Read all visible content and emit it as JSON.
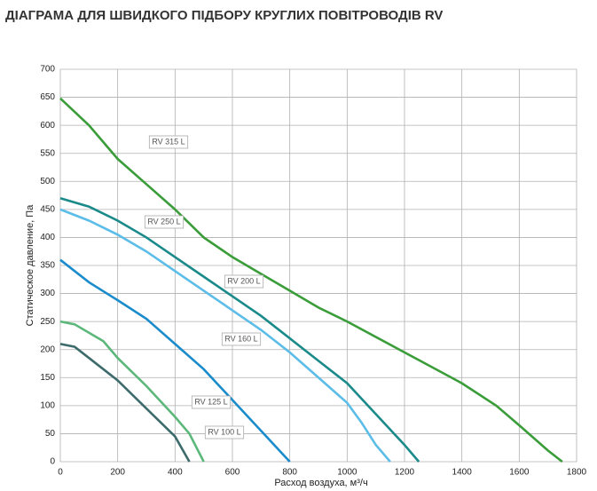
{
  "chart_data": {
    "type": "line",
    "title": "ДІАГРАМА ДЛЯ ШВИДКОГО ПІДБОРУ КРУГЛИХ ПОВІТРОВОДІВ RV",
    "xlabel": "Расход воздуха, м³/ч",
    "ylabel": "Статическое давление, Па",
    "xlim": [
      0,
      1800
    ],
    "xticks": [
      0,
      200,
      400,
      600,
      800,
      1000,
      1200,
      1400,
      1600,
      1800
    ],
    "ylim": [
      0,
      700
    ],
    "yticks": [
      0,
      50,
      100,
      150,
      200,
      250,
      300,
      350,
      400,
      450,
      500,
      550,
      600,
      650,
      700
    ],
    "grid": true,
    "series": [
      {
        "name": "RV 315 L",
        "color": "#3a9d3a",
        "x": [
          0,
          100,
          200,
          300,
          400,
          500,
          600,
          700,
          800,
          900,
          1000,
          1200,
          1400,
          1520,
          1600,
          1700,
          1750
        ],
        "values": [
          648,
          600,
          540,
          495,
          450,
          400,
          365,
          335,
          305,
          275,
          250,
          195,
          140,
          100,
          65,
          20,
          0
        ]
      },
      {
        "name": "RV 250 L",
        "color": "#1b8a8a",
        "x": [
          0,
          100,
          200,
          300,
          400,
          500,
          600,
          700,
          800,
          900,
          1000,
          1100,
          1200,
          1250
        ],
        "values": [
          470,
          455,
          430,
          400,
          365,
          330,
          295,
          260,
          220,
          180,
          140,
          85,
          30,
          0
        ]
      },
      {
        "name": "RV 200 L",
        "color": "#5bbde8",
        "x": [
          0,
          100,
          200,
          300,
          400,
          500,
          600,
          700,
          800,
          900,
          1000,
          1050,
          1100,
          1150
        ],
        "values": [
          450,
          430,
          405,
          375,
          340,
          305,
          270,
          235,
          195,
          150,
          105,
          70,
          30,
          0
        ]
      },
      {
        "name": "RV 160 L",
        "color": "#1a8ccc",
        "x": [
          0,
          100,
          200,
          300,
          400,
          500,
          600,
          700,
          800
        ],
        "values": [
          360,
          320,
          288,
          255,
          210,
          165,
          110,
          55,
          0
        ]
      },
      {
        "name": "RV 125 L",
        "color": "#5cb87a",
        "x": [
          0,
          50,
          150,
          200,
          300,
          400,
          450,
          500
        ],
        "values": [
          250,
          245,
          215,
          185,
          135,
          80,
          50,
          0
        ]
      },
      {
        "name": "RV 100 L",
        "color": "#3d6b6b",
        "x": [
          0,
          50,
          100,
          200,
          300,
          400,
          450
        ],
        "values": [
          210,
          205,
          185,
          145,
          95,
          45,
          0
        ]
      }
    ]
  }
}
